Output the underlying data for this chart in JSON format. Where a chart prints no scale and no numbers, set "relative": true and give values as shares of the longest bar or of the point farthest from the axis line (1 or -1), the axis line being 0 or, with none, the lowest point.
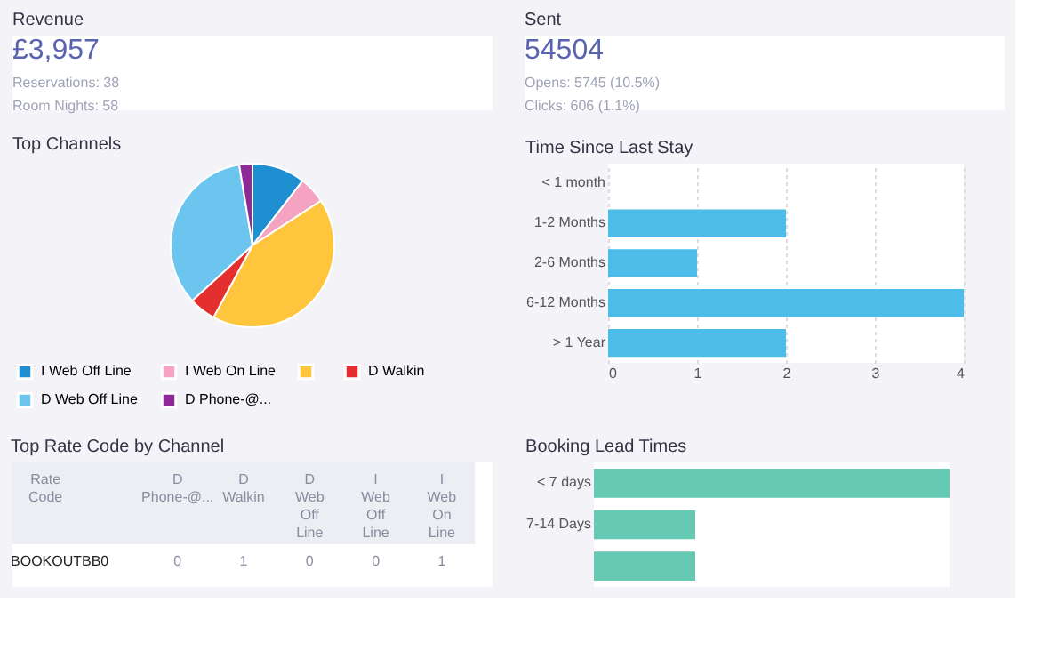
{
  "chart_data": [
    {
      "type": "other",
      "title": "Revenue",
      "annotations": [
        "£3,957",
        "Reservations: 38",
        "Room Nights: 58"
      ]
    },
    {
      "type": "other",
      "title": "Sent",
      "annotations": [
        "54504",
        "Opens: 5745 (10.5%)",
        "Clicks: 606 (1.1%)"
      ]
    },
    {
      "type": "pie",
      "title": "Top Channels",
      "categories": [
        "I Web Off Line",
        "I Web On Line",
        null,
        "D Walkin",
        "D Web Off Line",
        "D Phone-@..."
      ],
      "values": [
        10.5,
        5.3,
        42.1,
        5.3,
        34.2,
        2.6
      ],
      "colors": [
        "#1e90d2",
        "#f4a3c0",
        "#ffc53d",
        "#e52e2e",
        "#6cc5ef",
        "#8e2a97"
      ],
      "legend": "bottom"
    },
    {
      "type": "bar",
      "orientation": "horizontal",
      "title": "Time Since Last Stay",
      "categories": [
        "< 1 month",
        "1-2 Months",
        "2-6 Months",
        "6-12 Months",
        "> 1 Year"
      ],
      "values": [
        0,
        2,
        1,
        4,
        2
      ],
      "color": "#4cbce8",
      "xlim": [
        0,
        4
      ],
      "xticks": [
        0,
        1,
        2,
        3,
        4
      ],
      "grid": "x"
    },
    {
      "type": "other",
      "title": "Top Rate Code by Channel",
      "categories": [
        "Rate Code",
        null,
        "D Phone-@...",
        "D Walkin",
        "D Web Off Line",
        "I Web Off Line",
        "I Web On Line"
      ],
      "cell_labels": [
        [
          "BOOKOUTBB0",
          null,
          "0",
          "1",
          "0",
          "0",
          "1"
        ]
      ]
    },
    {
      "type": "bar",
      "orientation": "horizontal",
      "title": "Booking Lead Times",
      "relative": true,
      "categories": [
        "< 7 days",
        "7-14 Days",
        null
      ],
      "values": [
        1,
        0.285,
        0.285
      ],
      "color": "#66c9b4"
    }
  ]
}
